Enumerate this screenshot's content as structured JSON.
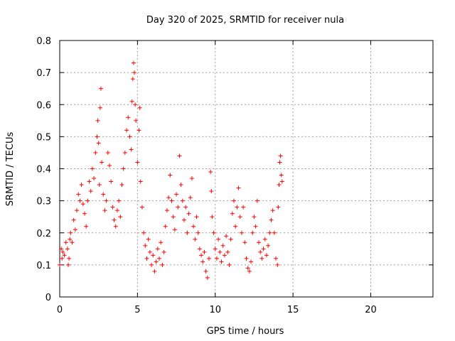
{
  "chart_data": {
    "type": "scatter",
    "title": "Day 320 of 2025, SRMTID for receiver nula",
    "xlabel": "GPS time / hours",
    "ylabel": "SRMTID / TECUs",
    "xlim": [
      0,
      24
    ],
    "ylim": [
      0,
      0.8
    ],
    "x_ticks": [
      0,
      5,
      10,
      15,
      20
    ],
    "x_tick_labels": [
      "0",
      "5",
      "10",
      "15",
      "20"
    ],
    "y_ticks": [
      0,
      0.1,
      0.2,
      0.3,
      0.4,
      0.5,
      0.6,
      0.7,
      0.8
    ],
    "y_tick_labels": [
      "0",
      "0.1",
      "0.2",
      "0.3",
      "0.4",
      "0.5",
      "0.6",
      "0.7",
      "0.8"
    ],
    "grid": true,
    "marker": "+",
    "color": "#ff0000",
    "series": [
      {
        "name": "SRMTID",
        "points": [
          [
            0.0,
            0.1
          ],
          [
            0.1,
            0.15
          ],
          [
            0.15,
            0.12
          ],
          [
            0.2,
            0.14
          ],
          [
            0.3,
            0.13
          ],
          [
            0.4,
            0.17
          ],
          [
            0.5,
            0.15
          ],
          [
            0.55,
            0.1
          ],
          [
            0.6,
            0.12
          ],
          [
            0.65,
            0.18
          ],
          [
            0.7,
            0.2
          ],
          [
            0.8,
            0.17
          ],
          [
            0.9,
            0.24
          ],
          [
            1.0,
            0.21
          ],
          [
            1.1,
            0.27
          ],
          [
            1.2,
            0.32
          ],
          [
            1.3,
            0.3
          ],
          [
            1.4,
            0.35
          ],
          [
            1.5,
            0.29
          ],
          [
            1.6,
            0.26
          ],
          [
            1.7,
            0.22
          ],
          [
            1.8,
            0.3
          ],
          [
            1.9,
            0.36
          ],
          [
            2.0,
            0.33
          ],
          [
            2.1,
            0.4
          ],
          [
            2.2,
            0.37
          ],
          [
            2.3,
            0.45
          ],
          [
            2.4,
            0.5
          ],
          [
            2.45,
            0.55
          ],
          [
            2.5,
            0.48
          ],
          [
            2.55,
            0.35
          ],
          [
            2.6,
            0.59
          ],
          [
            2.65,
            0.65
          ],
          [
            2.7,
            0.42
          ],
          [
            2.8,
            0.32
          ],
          [
            2.9,
            0.27
          ],
          [
            3.0,
            0.3
          ],
          [
            3.1,
            0.45
          ],
          [
            3.2,
            0.41
          ],
          [
            3.3,
            0.36
          ],
          [
            3.4,
            0.28
          ],
          [
            3.5,
            0.24
          ],
          [
            3.6,
            0.22
          ],
          [
            3.7,
            0.27
          ],
          [
            3.8,
            0.3
          ],
          [
            3.9,
            0.25
          ],
          [
            4.0,
            0.35
          ],
          [
            4.1,
            0.4
          ],
          [
            4.2,
            0.45
          ],
          [
            4.3,
            0.52
          ],
          [
            4.4,
            0.56
          ],
          [
            4.5,
            0.5
          ],
          [
            4.6,
            0.46
          ],
          [
            4.65,
            0.61
          ],
          [
            4.7,
            0.68
          ],
          [
            4.75,
            0.73
          ],
          [
            4.8,
            0.7
          ],
          [
            4.85,
            0.6
          ],
          [
            4.9,
            0.55
          ],
          [
            5.0,
            0.42
          ],
          [
            5.1,
            0.52
          ],
          [
            5.15,
            0.59
          ],
          [
            5.2,
            0.36
          ],
          [
            5.3,
            0.28
          ],
          [
            5.4,
            0.2
          ],
          [
            5.5,
            0.16
          ],
          [
            5.6,
            0.12
          ],
          [
            5.7,
            0.18
          ],
          [
            5.8,
            0.14
          ],
          [
            5.9,
            0.1
          ],
          [
            6.0,
            0.13
          ],
          [
            6.1,
            0.08
          ],
          [
            6.2,
            0.11
          ],
          [
            6.3,
            0.15
          ],
          [
            6.4,
            0.12
          ],
          [
            6.5,
            0.17
          ],
          [
            6.6,
            0.1
          ],
          [
            6.7,
            0.14
          ],
          [
            6.8,
            0.22
          ],
          [
            6.9,
            0.27
          ],
          [
            7.0,
            0.31
          ],
          [
            7.1,
            0.38
          ],
          [
            7.2,
            0.3
          ],
          [
            7.3,
            0.25
          ],
          [
            7.4,
            0.21
          ],
          [
            7.5,
            0.32
          ],
          [
            7.6,
            0.28
          ],
          [
            7.7,
            0.44
          ],
          [
            7.8,
            0.35
          ],
          [
            7.9,
            0.3
          ],
          [
            8.0,
            0.24
          ],
          [
            8.1,
            0.28
          ],
          [
            8.2,
            0.2
          ],
          [
            8.3,
            0.26
          ],
          [
            8.4,
            0.31
          ],
          [
            8.5,
            0.37
          ],
          [
            8.6,
            0.22
          ],
          [
            8.7,
            0.18
          ],
          [
            8.8,
            0.25
          ],
          [
            8.9,
            0.2
          ],
          [
            9.0,
            0.15
          ],
          [
            9.1,
            0.13
          ],
          [
            9.2,
            0.11
          ],
          [
            9.3,
            0.14
          ],
          [
            9.4,
            0.08
          ],
          [
            9.5,
            0.06
          ],
          [
            9.6,
            0.12
          ],
          [
            9.7,
            0.39
          ],
          [
            9.75,
            0.33
          ],
          [
            9.8,
            0.25
          ],
          [
            9.9,
            0.2
          ],
          [
            10.0,
            0.15
          ],
          [
            10.1,
            0.12
          ],
          [
            10.2,
            0.18
          ],
          [
            10.3,
            0.14
          ],
          [
            10.4,
            0.11
          ],
          [
            10.5,
            0.16
          ],
          [
            10.6,
            0.13
          ],
          [
            10.7,
            0.19
          ],
          [
            10.8,
            0.14
          ],
          [
            10.9,
            0.1
          ],
          [
            11.0,
            0.18
          ],
          [
            11.1,
            0.26
          ],
          [
            11.2,
            0.3
          ],
          [
            11.3,
            0.22
          ],
          [
            11.4,
            0.28
          ],
          [
            11.5,
            0.34
          ],
          [
            11.6,
            0.25
          ],
          [
            11.7,
            0.2
          ],
          [
            11.8,
            0.28
          ],
          [
            11.9,
            0.17
          ],
          [
            12.0,
            0.12
          ],
          [
            12.1,
            0.09
          ],
          [
            12.2,
            0.08
          ],
          [
            12.3,
            0.11
          ],
          [
            12.4,
            0.2
          ],
          [
            12.5,
            0.25
          ],
          [
            12.6,
            0.22
          ],
          [
            12.7,
            0.3
          ],
          [
            12.8,
            0.17
          ],
          [
            12.9,
            0.14
          ],
          [
            13.0,
            0.12
          ],
          [
            13.1,
            0.15
          ],
          [
            13.2,
            0.18
          ],
          [
            13.3,
            0.13
          ],
          [
            13.4,
            0.16
          ],
          [
            13.5,
            0.2
          ],
          [
            13.6,
            0.24
          ],
          [
            13.7,
            0.27
          ],
          [
            13.8,
            0.2
          ],
          [
            13.9,
            0.12
          ],
          [
            14.0,
            0.1
          ],
          [
            14.05,
            0.28
          ],
          [
            14.1,
            0.35
          ],
          [
            14.15,
            0.42
          ],
          [
            14.2,
            0.44
          ],
          [
            14.25,
            0.38
          ],
          [
            14.3,
            0.36
          ]
        ]
      }
    ]
  }
}
